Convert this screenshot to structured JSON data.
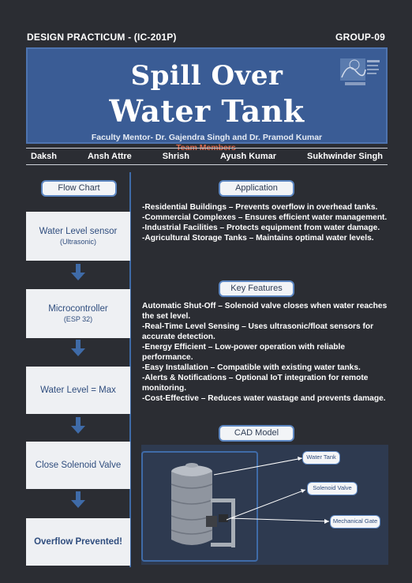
{
  "header": {
    "course": "DESIGN PRACTICUM - (IC-201P)",
    "group": "GROUP-09"
  },
  "banner": {
    "title_line1": "Spill Over",
    "title_line2": "Water Tank",
    "mentor": "Faculty Mentor- Dr. Gajendra Singh and Dr. Pramod Kumar"
  },
  "team": {
    "label": "Team Members",
    "members": [
      "Daksh",
      "Ansh Attre",
      "Shrish",
      "Ayush Kumar",
      "Sukhwinder Singh"
    ]
  },
  "flow_chart": {
    "label": "Flow Chart",
    "steps": [
      {
        "main": "Water Level sensor",
        "sub": "(Ultrasonic)"
      },
      {
        "main": "Microcontroller",
        "sub": "(ESP 32)"
      },
      {
        "main": "Water Level = Max",
        "sub": ""
      },
      {
        "main": "Close Solenoid Valve",
        "sub": ""
      },
      {
        "main": "Overflow Prevented!",
        "sub": ""
      }
    ]
  },
  "application": {
    "label": "Application",
    "lines": [
      "-Residential Buildings – Prevents overflow in overhead tanks.",
      "-Commercial Complexes – Ensures efficient water management.",
      "-Industrial Facilities – Protects equipment from water damage.",
      "-Agricultural Storage Tanks – Maintains optimal water levels."
    ]
  },
  "key_features": {
    "label": "Key Features",
    "lines": [
      " Automatic Shut-Off – Solenoid valve closes when water reaches the set level.",
      "-Real-Time Level Sensing – Uses ultrasonic/float sensors for accurate detection.",
      "-Energy Efficient – Low-power operation with reliable performance.",
      "-Easy Installation – Compatible with existing water tanks.",
      "-Alerts & Notifications – Optional IoT integration for remote monitoring.",
      "-Cost-Effective – Reduces water wastage and prevents damage."
    ]
  },
  "cad_model": {
    "label": "CAD Model",
    "callouts": [
      "Water Tank",
      "Solenoid Valve",
      "Mechanical Gate"
    ]
  },
  "colors": {
    "background": "#2b2d33",
    "banner": "#3a5c95",
    "accent_blue": "#3f6ba8",
    "team_label": "#d6694f",
    "flow_box_text": "#2f4d7e"
  }
}
